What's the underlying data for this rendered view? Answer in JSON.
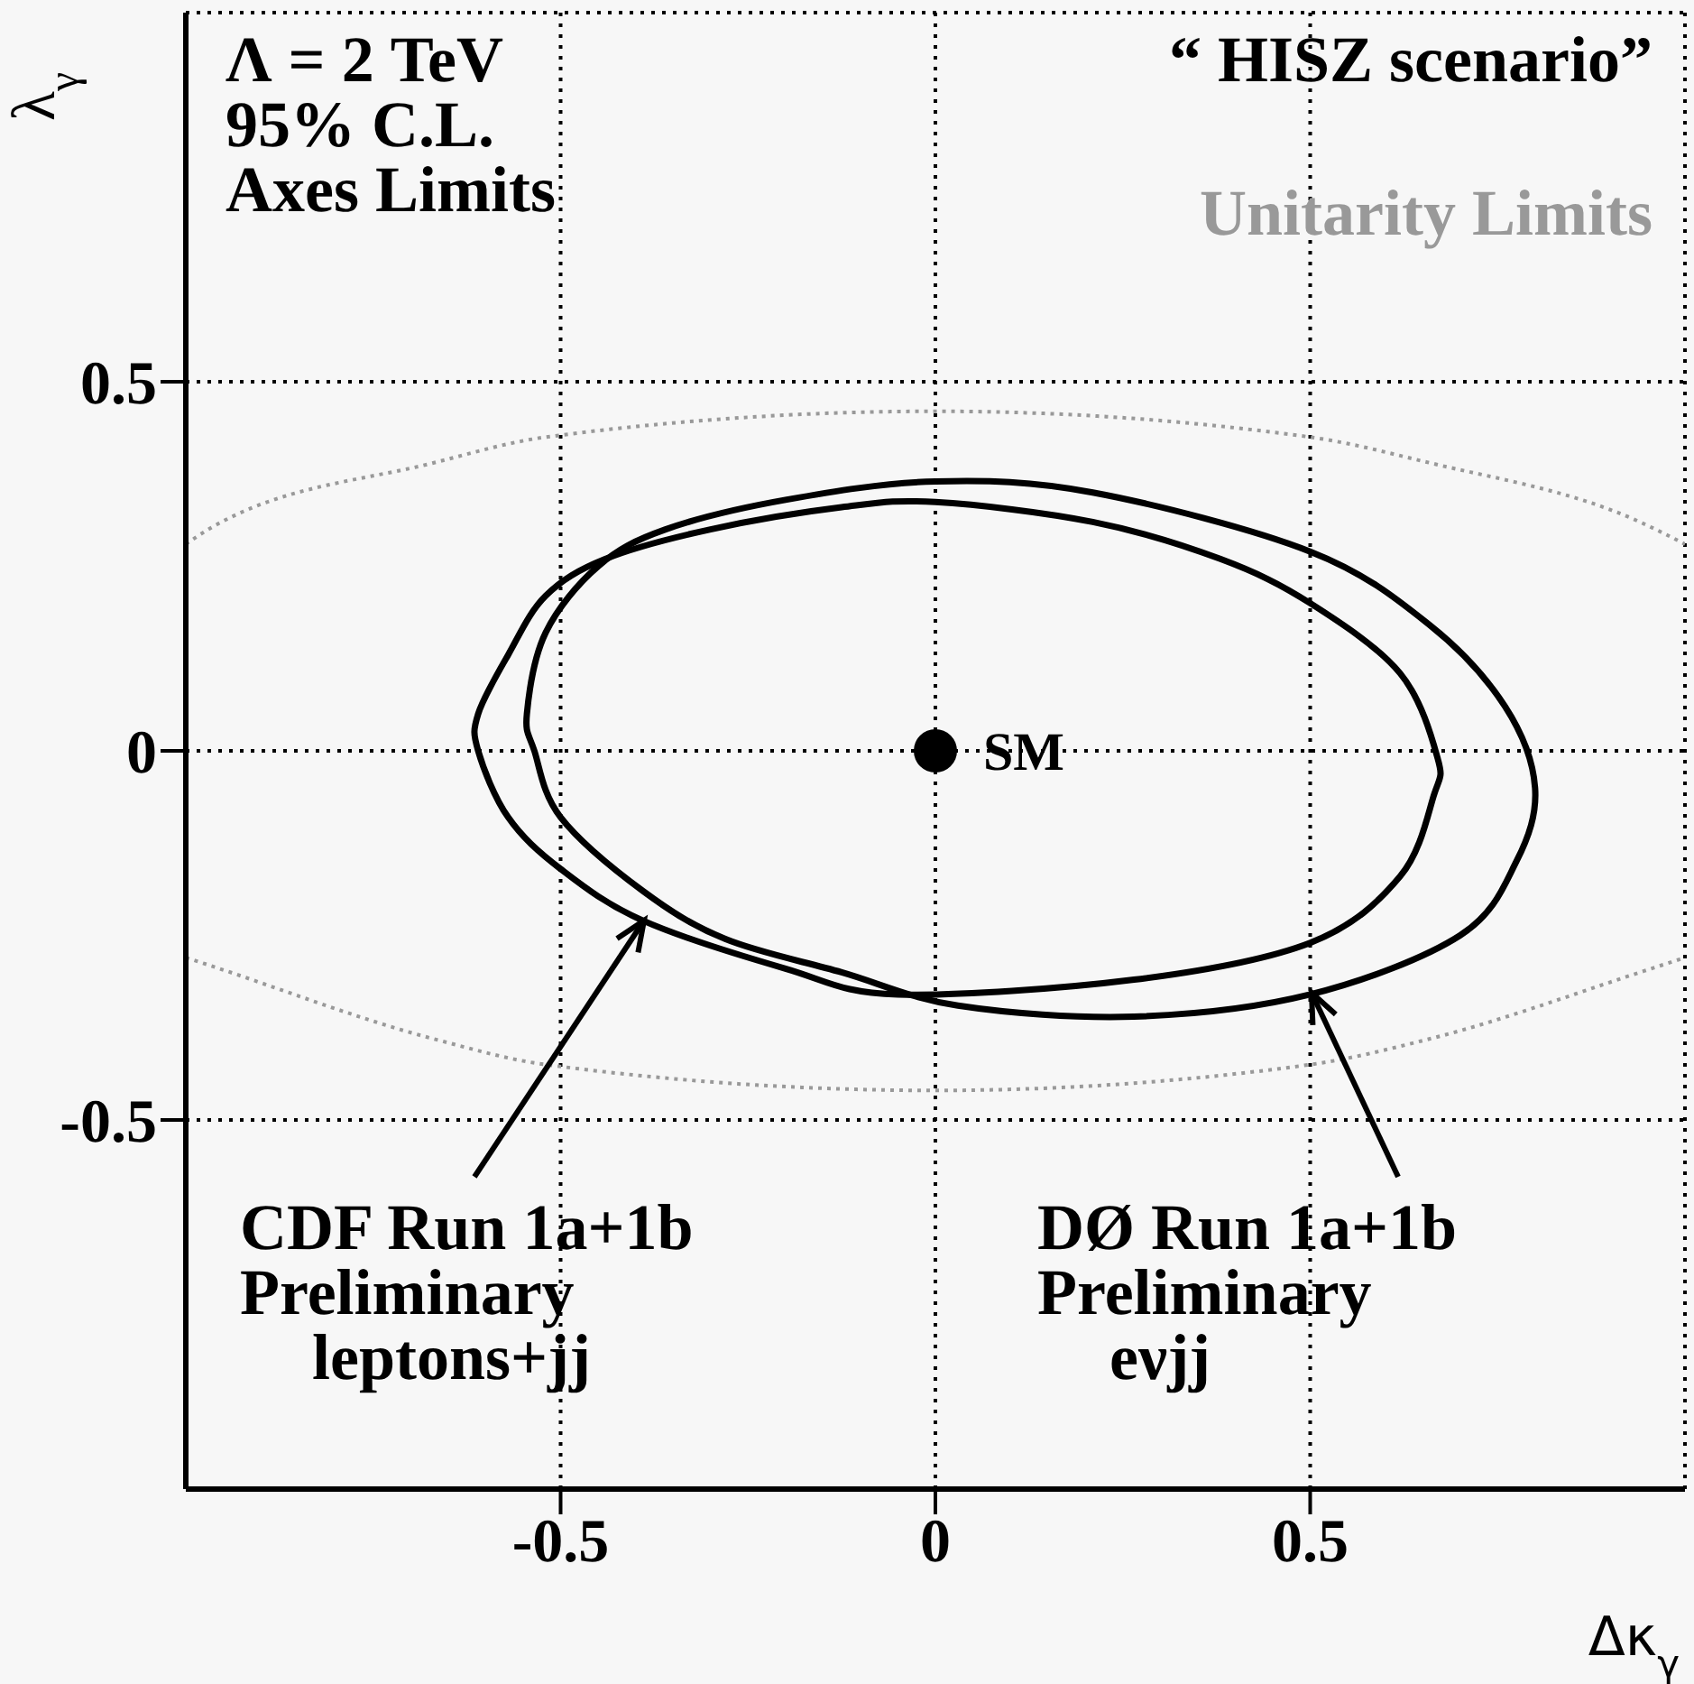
{
  "chart_data": {
    "type": "line",
    "xlabel": "Δκ$_{γ}$",
    "ylabel": "λ$_{γ}$",
    "xlim": [
      -1,
      1
    ],
    "ylim": [
      -1,
      1
    ],
    "xticks": [
      -0.5,
      0,
      0.5
    ],
    "yticks": [
      -0.5,
      0,
      0.5
    ],
    "grid": true,
    "marker": "none",
    "series": [
      {
        "name": "Unitarity Limits",
        "color": "#999999",
        "line_style": "dotted",
        "x": [
          -1,
          -0.97,
          -0.67,
          -0.52,
          0,
          0.5,
          0.66,
          0.94,
          1
        ],
        "values": [
          0.28,
          0.3,
          0.39,
          0.425,
          0.46,
          0.425,
          0.39,
          0.31,
          0.28
        ]
      },
      {
        "color": "#999999",
        "line_style": "dotted",
        "x": [
          -1,
          -0.97,
          -0.67,
          -0.52,
          0,
          0.5,
          0.66,
          0.94,
          1
        ],
        "values": [
          -0.28,
          -0.29,
          -0.39,
          -0.425,
          -0.46,
          -0.425,
          -0.39,
          -0.3,
          -0.28
        ]
      },
      {
        "name": "SM",
        "type": "scatter",
        "marker": "circle",
        "color": "#000000",
        "x": [
          0
        ],
        "values": [
          0
        ]
      }
    ],
    "annotations": [
      "Λ = 2 TeV\n95% C.L.\nAxes Limits",
      "“ HISZ scenario”",
      "CDF Run 1a+1b\nPreliminary\nleptons+jj",
      "DØ Run 1a+1b\nPreliminary\neνjj"
    ]
  }
}
